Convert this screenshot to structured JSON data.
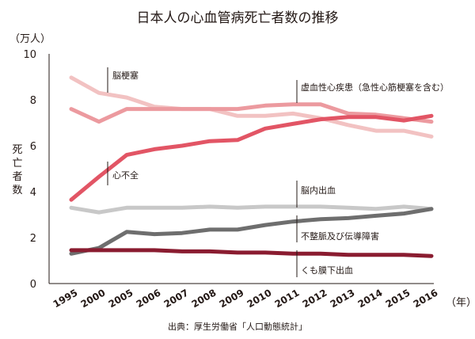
{
  "chart_data": {
    "type": "line",
    "title": "日本人の心血管病死亡者数の推移",
    "y_unit": "（万人）",
    "ylabel": "死亡者数",
    "x_unit": "（年）",
    "source": "出典：厚生労働省「人口動態統計」",
    "ylim": [
      0,
      10
    ],
    "y_ticks": [
      "0",
      "2",
      "4",
      "6",
      "8",
      "10"
    ],
    "categories": [
      "1995",
      "2000",
      "2005",
      "2006",
      "2007",
      "2008",
      "2009",
      "2010",
      "2011",
      "2012",
      "2013",
      "2014",
      "2015",
      "2016"
    ],
    "grid": false,
    "series": [
      {
        "name": "脳梗塞",
        "color": "#f2c2c2",
        "values": [
          8.97,
          8.3,
          8.1,
          7.7,
          7.6,
          7.6,
          7.3,
          7.3,
          7.4,
          7.2,
          6.9,
          6.65,
          6.65,
          6.4
        ]
      },
      {
        "name": "虚血性心疾患（急性心筋梗塞を含む）",
        "color": "#ec9a9f",
        "values": [
          7.6,
          7.05,
          7.6,
          7.6,
          7.6,
          7.6,
          7.6,
          7.75,
          7.8,
          7.8,
          7.4,
          7.35,
          7.2,
          7.05
        ]
      },
      {
        "name": "心不全",
        "color": "#e25565",
        "values": [
          3.65,
          4.65,
          5.6,
          5.85,
          6.0,
          6.2,
          6.25,
          6.75,
          6.95,
          7.15,
          7.25,
          7.25,
          7.1,
          7.3
        ]
      },
      {
        "name": "脳内出血",
        "color": "#c8c8c8",
        "values": [
          3.3,
          3.1,
          3.3,
          3.3,
          3.3,
          3.35,
          3.3,
          3.35,
          3.35,
          3.35,
          3.3,
          3.25,
          3.35,
          3.25
        ]
      },
      {
        "name": "不整脈及び伝導障害",
        "color": "#6e6e6e",
        "values": [
          1.3,
          1.55,
          2.25,
          2.15,
          2.2,
          2.35,
          2.35,
          2.55,
          2.7,
          2.8,
          2.85,
          2.95,
          3.05,
          3.25
        ]
      },
      {
        "name": "くも膜下出血",
        "color": "#8a1c30",
        "values": [
          1.45,
          1.45,
          1.45,
          1.45,
          1.4,
          1.4,
          1.35,
          1.35,
          1.3,
          1.3,
          1.25,
          1.25,
          1.25,
          1.2
        ]
      }
    ]
  }
}
